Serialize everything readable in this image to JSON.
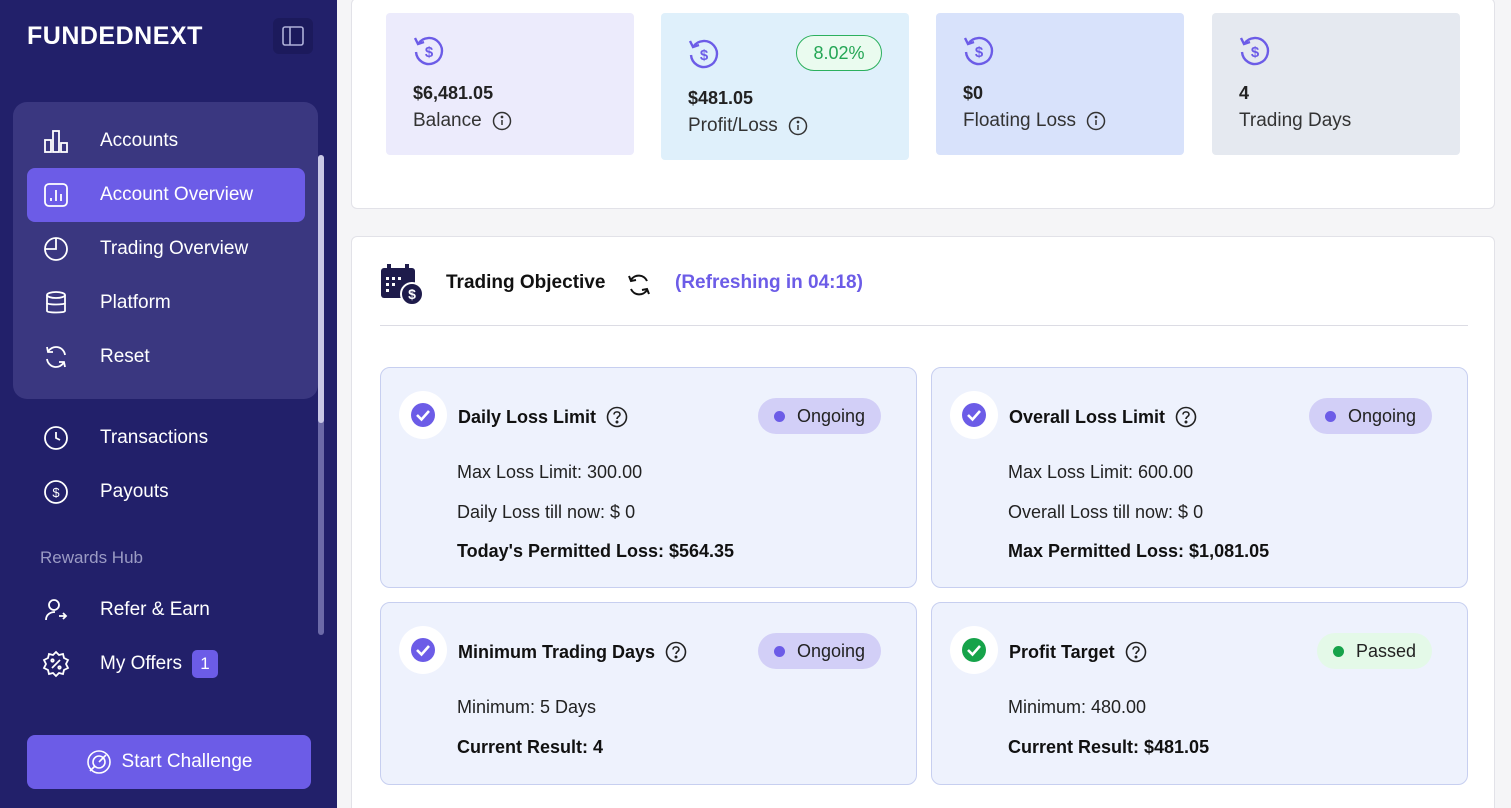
{
  "brand": {
    "logo_text": "FUNDEDNEXT",
    "accent": "#6c5ce7",
    "sidebar_bg": "#22206a"
  },
  "sidebar": {
    "group_items": [
      {
        "label": "Accounts",
        "icon": "bar-chart-icon"
      },
      {
        "label": "Account Overview",
        "icon": "chart-box-icon",
        "active": true
      },
      {
        "label": "Trading Overview",
        "icon": "pie-chart-icon"
      },
      {
        "label": "Platform",
        "icon": "database-icon"
      },
      {
        "label": "Reset",
        "icon": "refresh-icon"
      }
    ],
    "items": [
      {
        "label": "Transactions",
        "icon": "clock-icon"
      },
      {
        "label": "Payouts",
        "icon": "dollar-coin-icon"
      }
    ],
    "rewards_label": "Rewards Hub",
    "rewards_items": [
      {
        "label": "Refer & Earn",
        "icon": "user-share-icon"
      },
      {
        "label": "My Offers",
        "icon": "discount-badge-icon",
        "badge": "1"
      }
    ],
    "start_button": "Start Challenge"
  },
  "stats": [
    {
      "value": "$6,481.05",
      "caption": "Balance",
      "bg": "#ecebfc",
      "info": true
    },
    {
      "value": "$481.05",
      "caption": "Profit/Loss",
      "bg": "#dff0fb",
      "info": true,
      "percent": "8.02%"
    },
    {
      "value": "$0",
      "caption": "Floating Loss",
      "bg": "#d8e2fb",
      "info": true
    },
    {
      "value": "4",
      "caption": "Trading Days",
      "bg": "#e5e9f0",
      "info": false
    }
  ],
  "objective": {
    "title": "Trading Objective",
    "refreshing": "(Refreshing in 04:18)",
    "cards": [
      {
        "title": "Daily Loss Limit",
        "status": "Ongoing",
        "status_type": "ongoing",
        "lines": [
          "Max Loss Limit: 300.00",
          "Daily Loss till now: $ 0"
        ],
        "bold": "Today's Permitted Loss: $564.35"
      },
      {
        "title": "Overall Loss Limit",
        "status": "Ongoing",
        "status_type": "ongoing",
        "lines": [
          "Max Loss Limit: 600.00",
          "Overall Loss till now: $ 0"
        ],
        "bold": "Max Permitted Loss: $1,081.05"
      },
      {
        "title": "Minimum Trading Days",
        "status": "Ongoing",
        "status_type": "ongoing",
        "lines": [
          "Minimum: 5 Days"
        ],
        "bold": "Current Result: 4"
      },
      {
        "title": "Profit Target",
        "status": "Passed",
        "status_type": "passed",
        "lines": [
          "Minimum: 480.00"
        ],
        "bold": "Current Result: $481.05"
      }
    ]
  }
}
